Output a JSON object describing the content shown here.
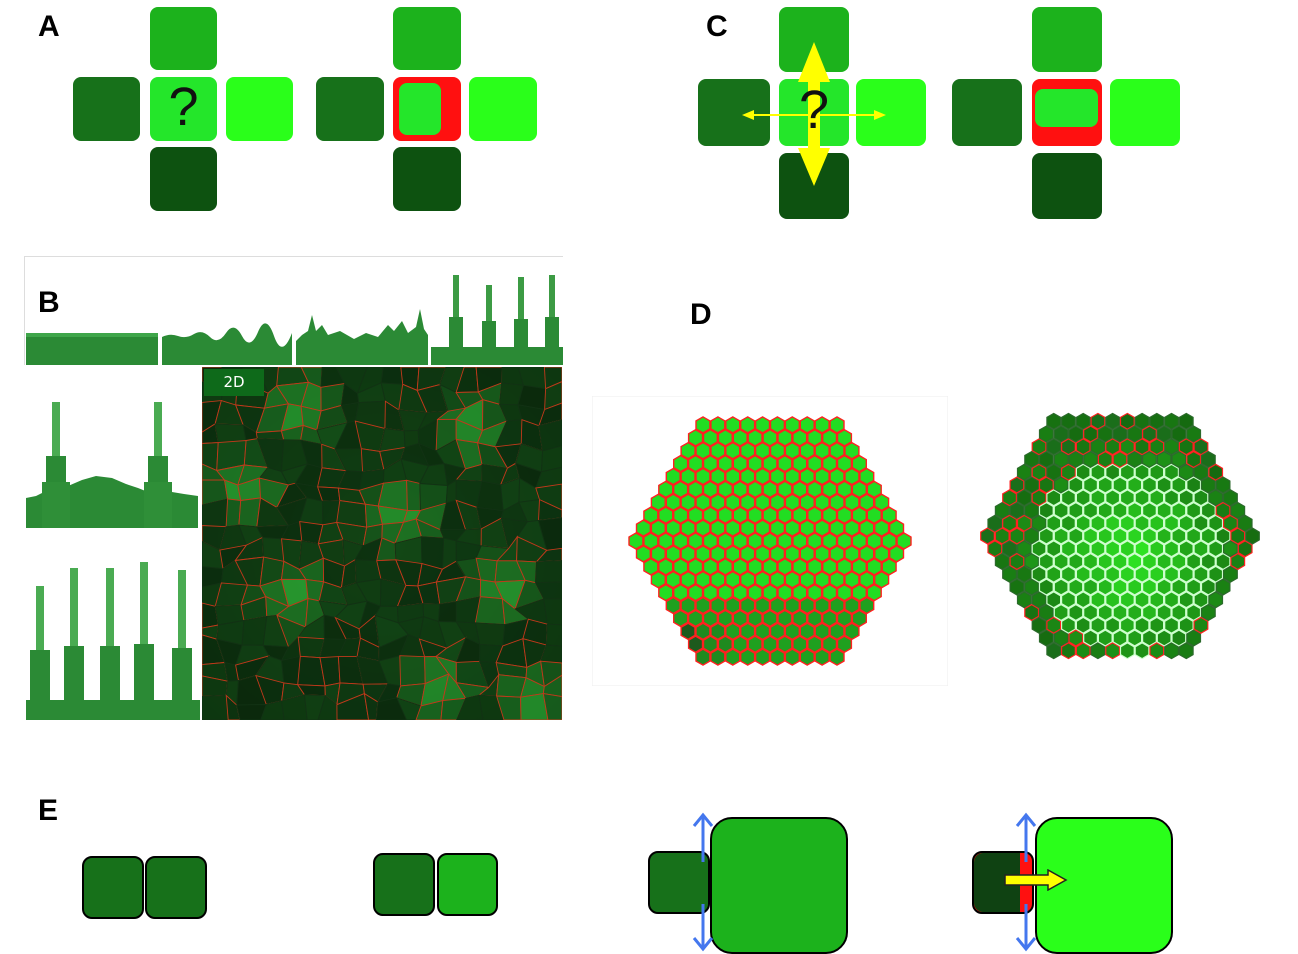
{
  "panels": {
    "a": {
      "label": "A",
      "question_mark": "?"
    },
    "b": {
      "label": "B",
      "view_tag": "2D"
    },
    "c": {
      "label": "C",
      "question_mark": "?"
    },
    "d": {
      "label": "D"
    },
    "e": {
      "label": "E"
    }
  },
  "colors": {
    "cell_medium_green": "#1cb21c",
    "cell_dark_green": "#17711a",
    "cell_darker_green": "#0d5210",
    "cell_light_green": "#24e62a",
    "cell_bright_green": "#2aff1a",
    "inhibition_red": "#ff1010",
    "arrow_yellow": "#ffff00",
    "arrow_blue": "#4477ee",
    "tissue_background": "#0f3a12",
    "tissue_border": "#c0391b",
    "stem_cell_blue": "#1414ff"
  },
  "icons": [
    "yellow-double-arrow",
    "blue-double-arrow",
    "yellow-right-arrow"
  ]
}
